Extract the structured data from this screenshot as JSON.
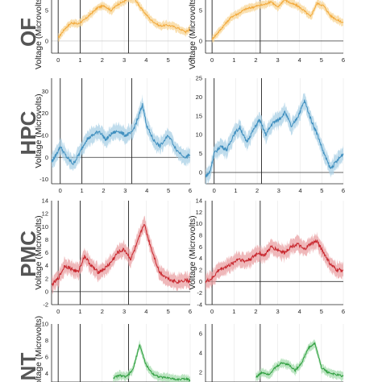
{
  "chart_data": [
    {
      "type": "line",
      "region": "OFC",
      "ylabel": "Voltage (Microvolts)",
      "xlim": [
        -0.3,
        6
      ],
      "ylim": [
        -2,
        7
      ],
      "xticks": [
        "0",
        "1",
        "2",
        "3",
        "4",
        "5",
        "6"
      ],
      "yticks": [
        "0",
        "5"
      ],
      "events": [
        0,
        1,
        3.2
      ],
      "color": "#f2a93b",
      "band": "#f8d595",
      "series": [
        {
          "x": [
            0,
            0.3,
            0.6,
            0.9,
            1.2,
            1.5,
            1.8,
            2.1,
            2.4,
            2.7,
            3.0,
            3.2,
            3.5,
            3.8,
            4.2,
            4.6,
            5.0,
            5.4,
            5.8,
            6.0
          ],
          "values": [
            0.5,
            2,
            3,
            2.8,
            3.5,
            4.5,
            5.5,
            5.8,
            5,
            6,
            6.5,
            7,
            6.8,
            5.2,
            3.5,
            2.5,
            2.6,
            2.2,
            1.5,
            2
          ]
        }
      ]
    },
    {
      "type": "line",
      "region": "OFC",
      "ylabel": "Voltage (Microvolts)",
      "xlim": [
        -0.3,
        6
      ],
      "ylim": [
        -2,
        7
      ],
      "xticks": [
        "0",
        "1",
        "2",
        "3",
        "4",
        "5",
        "6"
      ],
      "yticks": [
        "0",
        "5"
      ],
      "events": [
        0,
        2.2
      ],
      "color": "#f2a93b",
      "band": "#f8d595",
      "series": [
        {
          "x": [
            0,
            0.3,
            0.6,
            0.9,
            1.2,
            1.5,
            1.8,
            2.1,
            2.4,
            2.7,
            3.0,
            3.3,
            3.6,
            3.9,
            4.2,
            4.5,
            4.8,
            5.1,
            5.4,
            5.7,
            6.0
          ],
          "values": [
            0.3,
            1.5,
            2.8,
            4,
            4.5,
            5.2,
            5.5,
            5.8,
            6,
            6.5,
            5.5,
            6.8,
            6.2,
            5.8,
            5,
            4,
            6.2,
            5.8,
            4.2,
            3.5,
            3
          ]
        }
      ]
    },
    {
      "type": "line",
      "region": "HPC",
      "ylabel": "Voltage (Microvolts)",
      "xlim": [
        -0.4,
        6
      ],
      "ylim": [
        -12,
        36
      ],
      "xticks": [
        "0",
        "1",
        "2",
        "3",
        "4",
        "5",
        "6"
      ],
      "yticks": [
        "-10",
        "0",
        "10",
        "20",
        "30"
      ],
      "events": [
        0,
        1,
        3.3
      ],
      "color": "#3f8fbf",
      "band": "#a9d0e6",
      "series": [
        {
          "x": [
            -0.4,
            -0.2,
            0,
            0.3,
            0.6,
            0.9,
            1.2,
            1.5,
            1.8,
            2.1,
            2.4,
            2.7,
            3.0,
            3.3,
            3.6,
            3.8,
            4.0,
            4.3,
            4.6,
            5.0,
            5.4,
            5.8,
            6.0
          ],
          "values": [
            -2,
            1,
            5,
            0,
            -3,
            2,
            8,
            10,
            12,
            8,
            11,
            12,
            10,
            11,
            18,
            24,
            14,
            8,
            5,
            10,
            3,
            0,
            1
          ]
        }
      ]
    },
    {
      "type": "line",
      "region": "HPC",
      "ylabel": "",
      "xlim": [
        -0.4,
        6
      ],
      "ylim": [
        -3,
        25
      ],
      "xticks": [
        "0",
        "1",
        "2",
        "3",
        "4",
        "5",
        "6"
      ],
      "yticks": [
        "0",
        "5",
        "10",
        "15",
        "20",
        "25"
      ],
      "events": [
        0,
        2.2
      ],
      "color": "#3f8fbf",
      "band": "#a9d0e6",
      "series": [
        {
          "x": [
            -0.4,
            -0.2,
            0,
            0.3,
            0.6,
            0.9,
            1.2,
            1.5,
            1.8,
            2.1,
            2.4,
            2.7,
            3.0,
            3.3,
            3.6,
            3.9,
            4.2,
            4.5,
            4.8,
            5.1,
            5.4,
            5.7,
            6.0
          ],
          "values": [
            -1,
            0,
            5,
            7,
            6,
            10,
            12,
            8,
            11,
            14,
            10,
            13,
            14,
            16,
            12,
            15,
            19,
            14,
            10,
            5,
            1,
            3,
            5
          ]
        }
      ]
    },
    {
      "type": "line",
      "region": "PMC",
      "ylabel": "Voltage (Microvolts)",
      "xlim": [
        -0.3,
        6
      ],
      "ylim": [
        -2,
        14
      ],
      "xticks": [
        "0",
        "1",
        "2",
        "3",
        "4",
        "5",
        "6"
      ],
      "yticks": [
        "-2",
        "0",
        "2",
        "4",
        "6",
        "8",
        "10",
        "12",
        "14"
      ],
      "events": [
        0,
        1,
        3.2
      ],
      "color": "#c8262d",
      "band": "#eaa0a3",
      "series": [
        {
          "x": [
            -0.3,
            0,
            0.3,
            0.6,
            0.9,
            1.2,
            1.5,
            1.8,
            2.1,
            2.4,
            2.7,
            3.0,
            3.3,
            3.6,
            3.9,
            4.2,
            4.6,
            5.0,
            5.4,
            5.8,
            6.0
          ],
          "values": [
            1,
            2,
            4,
            3.5,
            3,
            5.5,
            4,
            3,
            3.5,
            4.5,
            6,
            6.5,
            5,
            7.5,
            10.5,
            7,
            3,
            2,
            1.5,
            1.8,
            1.5
          ]
        }
      ]
    },
    {
      "type": "line",
      "region": "PMC",
      "ylabel": "Voltage (Microvolts)",
      "xlim": [
        -0.3,
        6
      ],
      "ylim": [
        -4,
        14
      ],
      "xticks": [
        "0",
        "1",
        "2",
        "3",
        "4",
        "5",
        "6"
      ],
      "yticks": [
        "-4",
        "-2",
        "0",
        "2",
        "4",
        "6",
        "8",
        "10",
        "12",
        "14"
      ],
      "events": [
        0,
        2.2
      ],
      "color": "#c8262d",
      "band": "#eaa0a3",
      "series": [
        {
          "x": [
            -0.3,
            0,
            0.3,
            0.6,
            0.9,
            1.2,
            1.5,
            1.8,
            2.1,
            2.4,
            2.7,
            3.0,
            3.3,
            3.6,
            3.9,
            4.2,
            4.5,
            4.8,
            5.1,
            5.4,
            5.7,
            6.0
          ],
          "values": [
            0,
            0.5,
            2,
            2.5,
            3,
            4,
            3.5,
            4,
            5,
            4.5,
            6,
            5.5,
            5,
            6,
            6.5,
            5.5,
            6.5,
            7,
            5,
            3,
            2,
            2
          ]
        }
      ]
    },
    {
      "type": "line",
      "region": "NT",
      "ylabel": "Voltage (Microvolts)",
      "xlim": [
        -0.3,
        6
      ],
      "ylim": [
        3,
        10
      ],
      "xticks": [],
      "yticks": [
        "4",
        "6",
        "8",
        "10"
      ],
      "events": [
        0,
        1,
        3.2
      ],
      "color": "#2e9e3e",
      "band": "#a6dcad",
      "series": [
        {
          "x": [
            2.5,
            2.8,
            3.1,
            3.4,
            3.7,
            4.0,
            4.3,
            4.6,
            5.0,
            5.4,
            5.8,
            6.0
          ],
          "values": [
            3.5,
            3.8,
            3.6,
            4.5,
            7.5,
            5,
            4,
            3.6,
            3.5,
            3.3,
            3.4,
            3.2
          ]
        }
      ]
    },
    {
      "type": "line",
      "region": "NT",
      "ylabel": "",
      "xlim": [
        -0.3,
        6
      ],
      "ylim": [
        1,
        7
      ],
      "xticks": [],
      "yticks": [
        "2",
        "4",
        "6"
      ],
      "events": [
        0,
        2.2
      ],
      "color": "#2e9e3e",
      "band": "#a6dcad",
      "series": [
        {
          "x": [
            2.0,
            2.3,
            2.6,
            2.9,
            3.2,
            3.5,
            3.8,
            4.1,
            4.4,
            4.7,
            5.0,
            5.3,
            5.6,
            6.0
          ],
          "values": [
            1.5,
            2,
            1.8,
            2.5,
            3,
            2.8,
            2.2,
            3,
            4.5,
            5,
            2.5,
            2,
            1.8,
            1.6
          ]
        }
      ]
    }
  ],
  "row_labels": [
    "OF",
    "HPC",
    "PMC",
    "NT"
  ]
}
